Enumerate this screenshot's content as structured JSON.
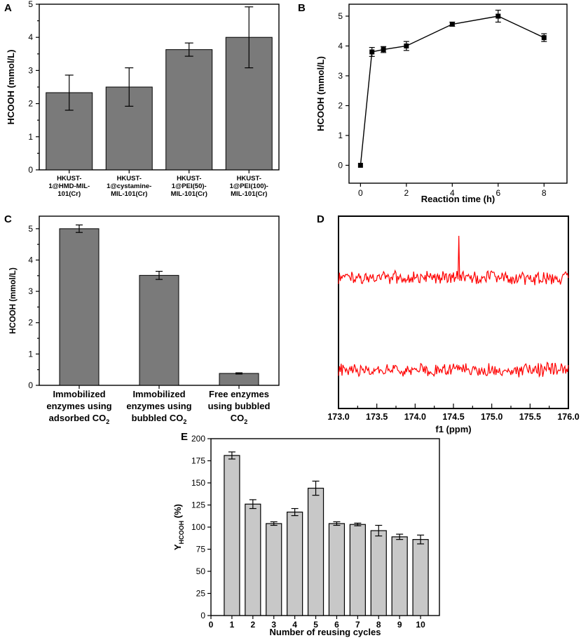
{
  "colors": {
    "bar_dark": "#7a7a7a",
    "bar_light": "#c8c8c8",
    "nmr_line": "#ff0000",
    "axis": "#000000"
  },
  "chart_data": [
    {
      "panel": "A",
      "type": "bar",
      "ylabel": "HCOOH (mmol/L)",
      "ylim": [
        0,
        5
      ],
      "yticks": [
        "0",
        "1",
        "2",
        "3",
        "4",
        "5"
      ],
      "categories": [
        [
          "HKUST-",
          "1@HMD-MIL-",
          "101(Cr)"
        ],
        [
          "HKUST-",
          "1@cystamine-",
          "MIL-101(Cr)"
        ],
        [
          "HKUST-",
          "1@PEI(50)-",
          "MIL-101(Cr)"
        ],
        [
          "HKUST-",
          "1@PEI(100)-",
          "MIL-101(Cr)"
        ]
      ],
      "values": [
        2.33,
        2.5,
        3.63,
        4.0
      ],
      "errors": [
        0.53,
        0.58,
        0.2,
        0.92
      ]
    },
    {
      "panel": "B",
      "type": "line",
      "xlabel": "Reaction time (h)",
      "ylabel": "HCOOH (mmol/L)",
      "xlim": [
        -0.5,
        9
      ],
      "ylim": [
        -0.6,
        5.4
      ],
      "xticks": [
        "0",
        "2",
        "4",
        "6",
        "8"
      ],
      "yticks": [
        "0",
        "1",
        "2",
        "3",
        "4",
        "5"
      ],
      "x": [
        0,
        0.5,
        1,
        2,
        4,
        6,
        8
      ],
      "y": [
        0,
        3.8,
        3.88,
        4.0,
        4.73,
        5.0,
        4.28
      ],
      "errors": [
        0,
        0.15,
        0.1,
        0.15,
        0.07,
        0.2,
        0.13
      ]
    },
    {
      "panel": "C",
      "type": "bar",
      "ylabel": "HCOOH (mmol/L)",
      "ylim": [
        0,
        5.4
      ],
      "yticks": [
        "0",
        "1",
        "2",
        "3",
        "4",
        "5"
      ],
      "categories": [
        {
          "lines": [
            "Immobilized",
            "enzymes using"
          ],
          "last": "adsorbed CO",
          "sub": "2"
        },
        {
          "lines": [
            "Immobilized",
            "enzymes using"
          ],
          "last": "bubbled CO",
          "sub": "2"
        },
        {
          "lines": [
            "Free enzymes",
            "using bubbled"
          ],
          "last": "CO",
          "sub": "2"
        }
      ],
      "values": [
        5.0,
        3.51,
        0.38
      ],
      "errors": [
        0.12,
        0.13,
        0.02
      ]
    },
    {
      "panel": "D",
      "type": "line",
      "xlabel": "f1 (ppm)",
      "xlim": [
        173.0,
        176.0
      ],
      "xticks": [
        "173.0",
        "173.5",
        "174.0",
        "174.5",
        "175.0",
        "175.5",
        "176.0"
      ],
      "series": [
        {
          "name": "upper spectrum",
          "peak_ppm": 174.57
        },
        {
          "name": "lower spectrum"
        }
      ]
    },
    {
      "panel": "E",
      "type": "bar",
      "xlabel": "Number of reusing cycles",
      "ylabel_main": "Y",
      "ylabel_sub": "HCOOH",
      "ylabel_tail": " (%)",
      "xlim": [
        0,
        10.9
      ],
      "ylim": [
        0,
        200
      ],
      "xticks": [
        "0",
        "1",
        "2",
        "3",
        "4",
        "5",
        "6",
        "7",
        "8",
        "9",
        "10"
      ],
      "yticks": [
        "0",
        "25",
        "50",
        "75",
        "100",
        "125",
        "150",
        "175",
        "200"
      ],
      "categories": [
        1,
        2,
        3,
        4,
        5,
        6,
        7,
        8,
        9,
        10
      ],
      "values": [
        181,
        126,
        104,
        117,
        144,
        104,
        103,
        96,
        89,
        86
      ],
      "errors": [
        4,
        5,
        2,
        4,
        8,
        2,
        1.5,
        6,
        3,
        5
      ]
    }
  ]
}
